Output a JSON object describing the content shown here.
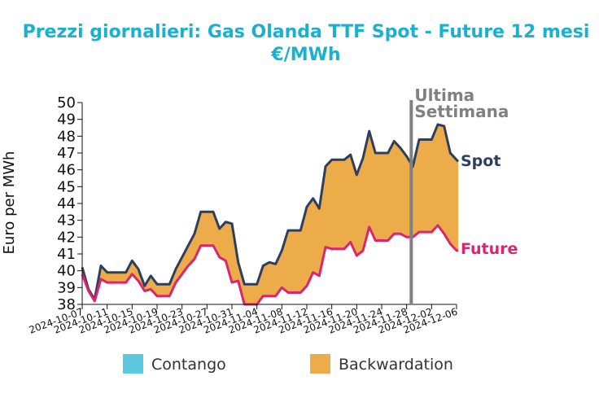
{
  "chart_data": {
    "type": "area",
    "title_line1": "Prezzi giornalieri: Gas Olanda TTF Spot - Future 12 mesi",
    "title_line2": "€/MWh",
    "ylabel": "Euro per MWh",
    "ylim": [
      38,
      50
    ],
    "yticks": [
      38,
      39,
      40,
      41,
      42,
      43,
      44,
      45,
      46,
      47,
      48,
      49,
      50
    ],
    "xlim": [
      "2024-10-07",
      "2024-12-06"
    ],
    "xticks": [
      "2024-10-07",
      "2024-10-11",
      "2024-10-15",
      "2024-10-19",
      "2024-10-23",
      "2024-10-27",
      "2024-10-31",
      "2024-11-04",
      "2024-11-08",
      "2024-11-12",
      "2024-11-16",
      "2024-11-20",
      "2024-11-24",
      "2024-11-28",
      "2024-12-02",
      "2024-12-06"
    ],
    "marker": {
      "date": "2024-11-29",
      "label_line1": "Ultima",
      "label_line2": "Settimana",
      "color": "#808080"
    },
    "colors": {
      "spot": "#2e3f5e",
      "future": "#d9266e",
      "backwardation": "#edac4a",
      "contango": "#5bc8e0"
    },
    "series": [
      {
        "name": "Spot",
        "points": [
          [
            "2024-10-07",
            40.2
          ],
          [
            "2024-10-08",
            38.9
          ],
          [
            "2024-10-09",
            38.3
          ],
          [
            "2024-10-10",
            40.3
          ],
          [
            "2024-10-11",
            39.9
          ],
          [
            "2024-10-12",
            39.9
          ],
          [
            "2024-10-13",
            39.9
          ],
          [
            "2024-10-14",
            39.9
          ],
          [
            "2024-10-15",
            40.6
          ],
          [
            "2024-10-16",
            40.1
          ],
          [
            "2024-10-17",
            39.1
          ],
          [
            "2024-10-18",
            39.7
          ],
          [
            "2024-10-19",
            39.2
          ],
          [
            "2024-10-20",
            39.2
          ],
          [
            "2024-10-21",
            39.2
          ],
          [
            "2024-10-22",
            40.1
          ],
          [
            "2024-10-23",
            40.8
          ],
          [
            "2024-10-24",
            41.5
          ],
          [
            "2024-10-25",
            42.2
          ],
          [
            "2024-10-26",
            43.5
          ],
          [
            "2024-10-27",
            43.5
          ],
          [
            "2024-10-28",
            43.5
          ],
          [
            "2024-10-29",
            42.5
          ],
          [
            "2024-10-30",
            42.9
          ],
          [
            "2024-10-31",
            42.8
          ],
          [
            "2024-11-01",
            40.5
          ],
          [
            "2024-11-02",
            39.2
          ],
          [
            "2024-11-03",
            39.2
          ],
          [
            "2024-11-04",
            39.2
          ],
          [
            "2024-11-05",
            40.3
          ],
          [
            "2024-11-06",
            40.5
          ],
          [
            "2024-11-07",
            40.4
          ],
          [
            "2024-11-08",
            41.2
          ],
          [
            "2024-11-09",
            42.4
          ],
          [
            "2024-11-10",
            42.4
          ],
          [
            "2024-11-11",
            42.4
          ],
          [
            "2024-11-12",
            43.8
          ],
          [
            "2024-11-13",
            44.3
          ],
          [
            "2024-11-14",
            43.7
          ],
          [
            "2024-11-15",
            46.2
          ],
          [
            "2024-11-16",
            46.6
          ],
          [
            "2024-11-17",
            46.6
          ],
          [
            "2024-11-18",
            46.6
          ],
          [
            "2024-11-19",
            46.9
          ],
          [
            "2024-11-20",
            45.7
          ],
          [
            "2024-11-21",
            46.7
          ],
          [
            "2024-11-22",
            48.3
          ],
          [
            "2024-11-23",
            47.0
          ],
          [
            "2024-11-24",
            47.0
          ],
          [
            "2024-11-25",
            47.0
          ],
          [
            "2024-11-26",
            47.7
          ],
          [
            "2024-11-27",
            47.3
          ],
          [
            "2024-11-28",
            46.8
          ],
          [
            "2024-11-29",
            46.2
          ],
          [
            "2024-11-30",
            47.8
          ],
          [
            "2024-12-01",
            47.8
          ],
          [
            "2024-12-02",
            47.8
          ],
          [
            "2024-12-03",
            48.7
          ],
          [
            "2024-12-04",
            48.6
          ],
          [
            "2024-12-05",
            47.0
          ],
          [
            "2024-12-06",
            46.6
          ],
          [
            "2024-12-07",
            46.5
          ]
        ]
      },
      {
        "name": "Future",
        "points": [
          [
            "2024-10-07",
            39.8
          ],
          [
            "2024-10-08",
            38.8
          ],
          [
            "2024-10-09",
            38.2
          ],
          [
            "2024-10-10",
            39.5
          ],
          [
            "2024-10-11",
            39.3
          ],
          [
            "2024-10-12",
            39.3
          ],
          [
            "2024-10-13",
            39.3
          ],
          [
            "2024-10-14",
            39.3
          ],
          [
            "2024-10-15",
            39.8
          ],
          [
            "2024-10-16",
            39.4
          ],
          [
            "2024-10-17",
            38.8
          ],
          [
            "2024-10-18",
            38.9
          ],
          [
            "2024-10-19",
            38.5
          ],
          [
            "2024-10-20",
            38.5
          ],
          [
            "2024-10-21",
            38.5
          ],
          [
            "2024-10-22",
            39.3
          ],
          [
            "2024-10-23",
            39.8
          ],
          [
            "2024-10-24",
            40.3
          ],
          [
            "2024-10-25",
            40.7
          ],
          [
            "2024-10-26",
            41.5
          ],
          [
            "2024-10-27",
            41.5
          ],
          [
            "2024-10-28",
            41.5
          ],
          [
            "2024-10-29",
            40.8
          ],
          [
            "2024-10-30",
            40.6
          ],
          [
            "2024-10-31",
            39.3
          ],
          [
            "2024-11-01",
            39.4
          ],
          [
            "2024-11-02",
            38.0
          ],
          [
            "2024-11-03",
            38.0
          ],
          [
            "2024-11-04",
            38.0
          ],
          [
            "2024-11-05",
            38.5
          ],
          [
            "2024-11-06",
            38.5
          ],
          [
            "2024-11-07",
            38.5
          ],
          [
            "2024-11-08",
            39.0
          ],
          [
            "2024-11-09",
            38.7
          ],
          [
            "2024-11-10",
            38.7
          ],
          [
            "2024-11-11",
            38.7
          ],
          [
            "2024-11-12",
            39.1
          ],
          [
            "2024-11-13",
            39.9
          ],
          [
            "2024-11-14",
            39.7
          ],
          [
            "2024-11-15",
            41.4
          ],
          [
            "2024-11-16",
            41.3
          ],
          [
            "2024-11-17",
            41.3
          ],
          [
            "2024-11-18",
            41.3
          ],
          [
            "2024-11-19",
            41.7
          ],
          [
            "2024-11-20",
            40.9
          ],
          [
            "2024-11-21",
            41.2
          ],
          [
            "2024-11-22",
            42.6
          ],
          [
            "2024-11-23",
            41.8
          ],
          [
            "2024-11-24",
            41.8
          ],
          [
            "2024-11-25",
            41.8
          ],
          [
            "2024-11-26",
            42.2
          ],
          [
            "2024-11-27",
            42.2
          ],
          [
            "2024-11-28",
            42.0
          ],
          [
            "2024-11-29",
            42.0
          ],
          [
            "2024-11-30",
            42.3
          ],
          [
            "2024-12-01",
            42.3
          ],
          [
            "2024-12-02",
            42.3
          ],
          [
            "2024-12-03",
            42.7
          ],
          [
            "2024-12-04",
            42.2
          ],
          [
            "2024-12-05",
            41.6
          ],
          [
            "2024-12-06",
            41.2
          ],
          [
            "2024-12-07",
            41.2
          ]
        ]
      }
    ],
    "legend": [
      {
        "label": "Contango",
        "color": "#5bc8e0"
      },
      {
        "label": "Backwardation",
        "color": "#edac4a"
      }
    ],
    "legend_position": "bottom"
  }
}
